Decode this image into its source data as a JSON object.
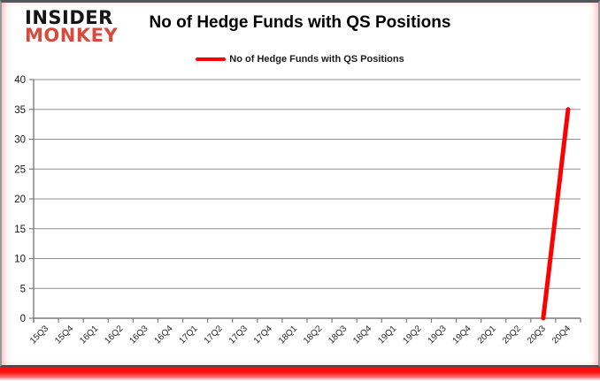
{
  "logo": {
    "line1": "INSIDER",
    "line2": "MONKEY",
    "line2_color": "#d94a3a"
  },
  "title": "No of Hedge Funds with QS Positions",
  "legend": {
    "label": "No of Hedge Funds with QS Positions",
    "color": "#ff0000"
  },
  "chart_data": {
    "type": "line",
    "title": "No of Hedge Funds with QS Positions",
    "xlabel": "",
    "ylabel": "",
    "categories": [
      "15Q3",
      "15Q4",
      "16Q1",
      "16Q2",
      "16Q3",
      "16Q4",
      "17Q1",
      "17Q2",
      "17Q3",
      "17Q4",
      "18Q1",
      "18Q2",
      "18Q3",
      "18Q4",
      "19Q1",
      "19Q2",
      "19Q3",
      "19Q4",
      "20Q1",
      "20Q2",
      "20Q3",
      "20Q4"
    ],
    "series": [
      {
        "name": "No of Hedge Funds with QS Positions",
        "color": "#ff0000",
        "values": [
          null,
          null,
          null,
          null,
          null,
          null,
          null,
          null,
          null,
          null,
          null,
          null,
          null,
          null,
          null,
          null,
          null,
          null,
          null,
          null,
          0,
          35
        ]
      }
    ],
    "ylim": [
      0,
      40
    ],
    "ytick_step": 5,
    "grid": true,
    "legend_position": "top"
  }
}
